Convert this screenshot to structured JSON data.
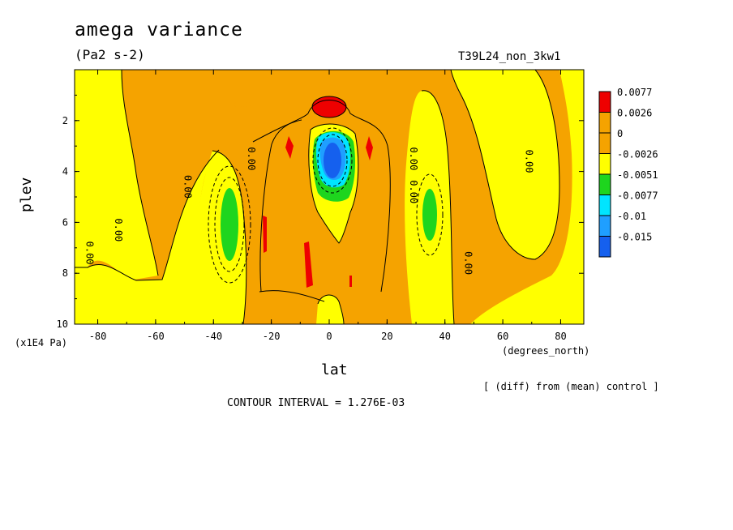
{
  "header": {
    "title": "amega variance",
    "units": "(Pa2 s-2)",
    "run_id": "T39L24_non_3kw1"
  },
  "footer": {
    "x_unit": "(degrees_north)",
    "y_unit": "(x1E4 Pa)",
    "diff_note": "[ (diff) from (mean) control ]",
    "contour_interval": "CONTOUR INTERVAL = 1.276E-03"
  },
  "colors": {
    "red": "#ee0000",
    "orange": "#f5a300",
    "yellow": "#ffff00",
    "green": "#1ed51e",
    "cyan": "#00e5ff",
    "lightblue": "#1f9fff",
    "blue": "#1560ee"
  },
  "chart_data": {
    "type": "heatmap",
    "title": "amega variance",
    "subtitle": "(Pa2 s-2)",
    "xlabel": "lat",
    "ylabel": "plev",
    "x_unit": "(degrees_north)",
    "y_unit": "(x1E4 Pa)",
    "xlim": [
      -88,
      88
    ],
    "ylim": [
      10,
      0
    ],
    "x_ticks": [
      "-80",
      "-60",
      "-40",
      "-20",
      "0",
      "20",
      "40",
      "60",
      "80"
    ],
    "x_tick_values": [
      -80,
      -60,
      -40,
      -20,
      0,
      20,
      40,
      60,
      80
    ],
    "y_ticks": [
      "2",
      "4",
      "6",
      "8",
      "10"
    ],
    "y_tick_values": [
      2,
      4,
      6,
      8,
      10
    ],
    "legend": {
      "placement": "right",
      "labels": [
        "0.0077",
        "0.0026",
        "0",
        "-0.0026",
        "-0.0051",
        "-0.0077",
        "-0.01",
        "-0.015"
      ],
      "colors": [
        "#ee0000",
        "#f5a300",
        "#f5a300",
        "#ffff00",
        "#1ed51e",
        "#00e5ff",
        "#1f9fff",
        "#1560ee"
      ]
    },
    "contour_labels": [
      "0.00",
      "0.00",
      "0.00",
      "0.00",
      "0.00",
      "0.00",
      "0.00",
      "0.00"
    ],
    "contour_interval": "1.276E-03"
  }
}
